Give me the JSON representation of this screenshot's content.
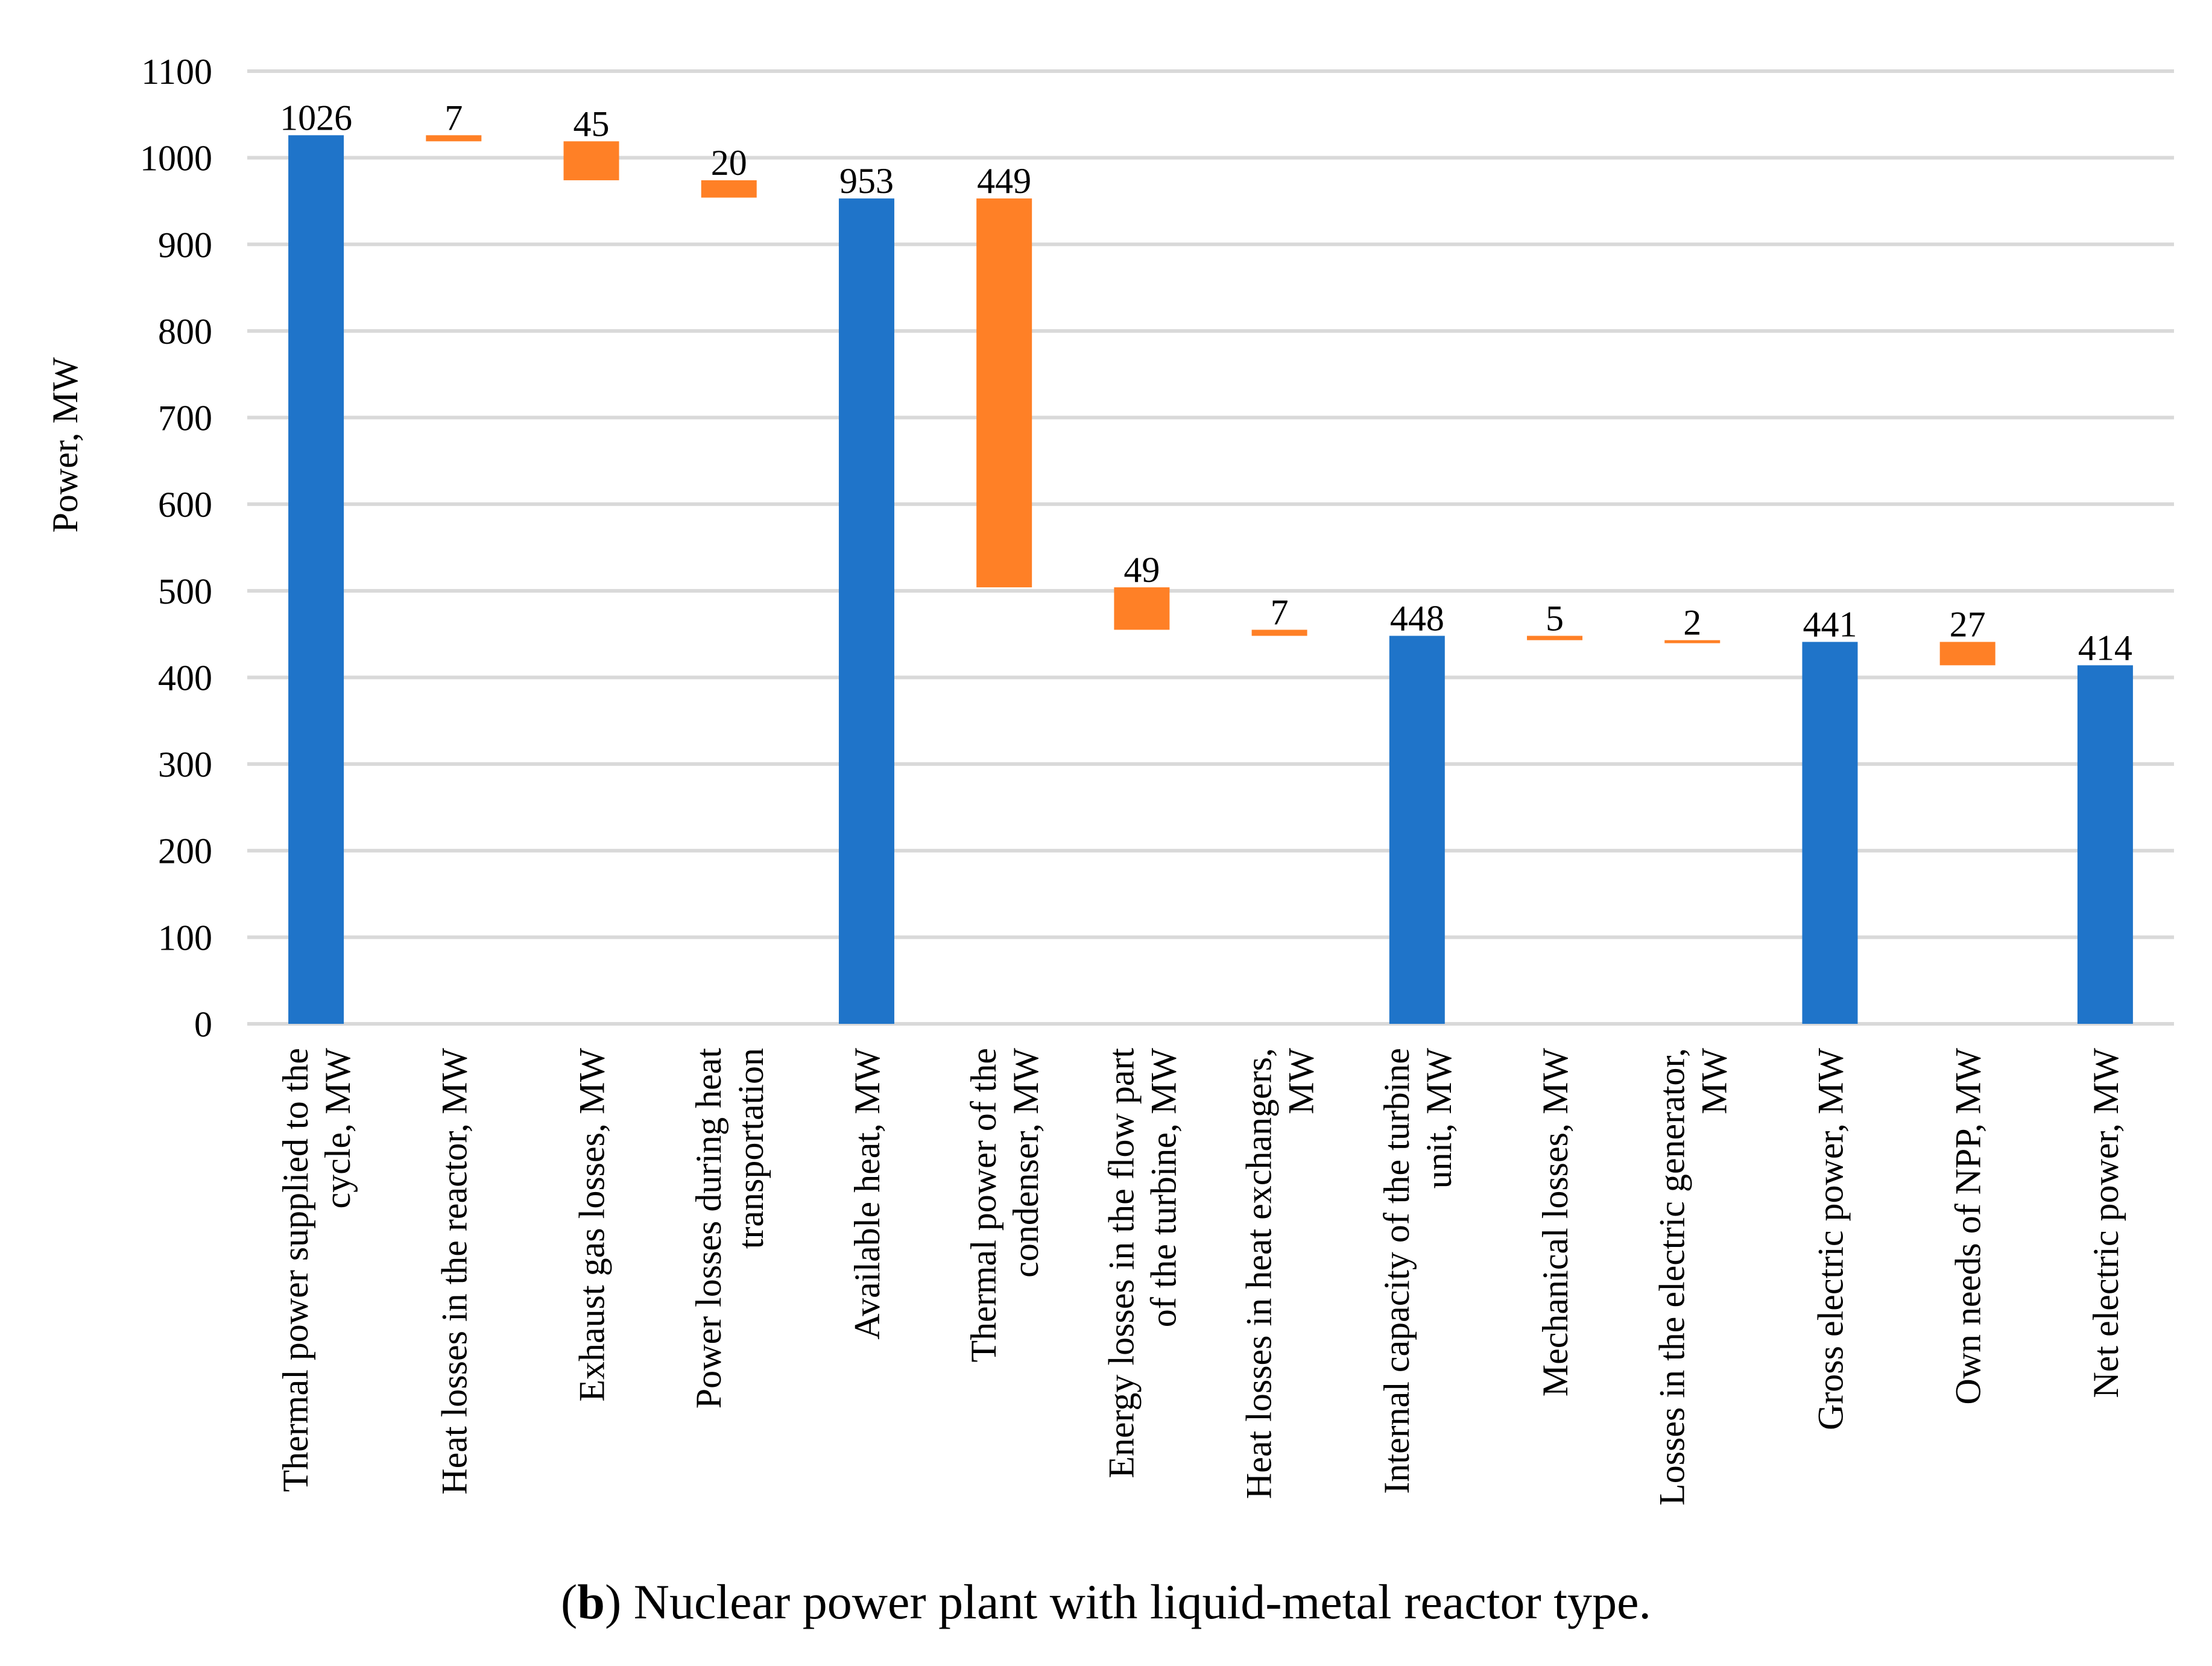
{
  "chart_data": {
    "type": "bar",
    "subtype": "waterfall",
    "ylabel": "Power, MW",
    "xlabel": "",
    "ylim": [
      0,
      1100
    ],
    "yticks": [
      0,
      100,
      200,
      300,
      400,
      500,
      600,
      700,
      800,
      900,
      1000,
      1100
    ],
    "grid": true,
    "colors": {
      "total": "#1f74c9",
      "loss": "#ff8026",
      "grid": "#d9d9d9"
    },
    "categories": [
      {
        "label": [
          "Thermal power supplied to the",
          "cycle, MW"
        ],
        "kind": "total",
        "start": 0,
        "end": 1026,
        "value_label": "1026"
      },
      {
        "label": [
          "Heat losses in the reactor, MW"
        ],
        "kind": "loss",
        "start": 1019,
        "end": 1026,
        "value_label": "7"
      },
      {
        "label": [
          "Exhaust gas losses, MW"
        ],
        "kind": "loss",
        "start": 974,
        "end": 1019,
        "value_label": "45"
      },
      {
        "label": [
          "Power losses during heat",
          "transportation"
        ],
        "kind": "loss",
        "start": 954,
        "end": 974,
        "value_label": "20"
      },
      {
        "label": [
          "Available heat, MW"
        ],
        "kind": "total",
        "start": 0,
        "end": 953,
        "value_label": "953"
      },
      {
        "label": [
          "Thermal power of the",
          "condenser, MW"
        ],
        "kind": "loss",
        "start": 504,
        "end": 953,
        "value_label": "449"
      },
      {
        "label": [
          "Energy losses in the flow part",
          "of the turbine, MW"
        ],
        "kind": "loss",
        "start": 455,
        "end": 504,
        "value_label": "49"
      },
      {
        "label": [
          "Heat losses in heat exchangers,",
          "MW"
        ],
        "kind": "loss",
        "start": 448,
        "end": 455,
        "value_label": "7"
      },
      {
        "label": [
          "Internal capacity of the turbine",
          "unit, MW"
        ],
        "kind": "total",
        "start": 0,
        "end": 448,
        "value_label": "448"
      },
      {
        "label": [
          "Mechanical losses, MW"
        ],
        "kind": "loss",
        "start": 443,
        "end": 448,
        "value_label": "5"
      },
      {
        "label": [
          "Losses in the electric generator,",
          "MW"
        ],
        "kind": "loss",
        "start": 441,
        "end": 443,
        "value_label": "2"
      },
      {
        "label": [
          "Gross electric power, MW"
        ],
        "kind": "total",
        "start": 0,
        "end": 441,
        "value_label": "441"
      },
      {
        "label": [
          "Own needs of NPP, MW"
        ],
        "kind": "loss",
        "start": 414,
        "end": 441,
        "value_label": "27"
      },
      {
        "label": [
          "Net electric power, MW"
        ],
        "kind": "total",
        "start": 0,
        "end": 414,
        "value_label": "414"
      }
    ]
  },
  "caption": {
    "open": "(",
    "bold": "b",
    "rest": ") Nuclear power plant with liquid-metal reactor type."
  }
}
